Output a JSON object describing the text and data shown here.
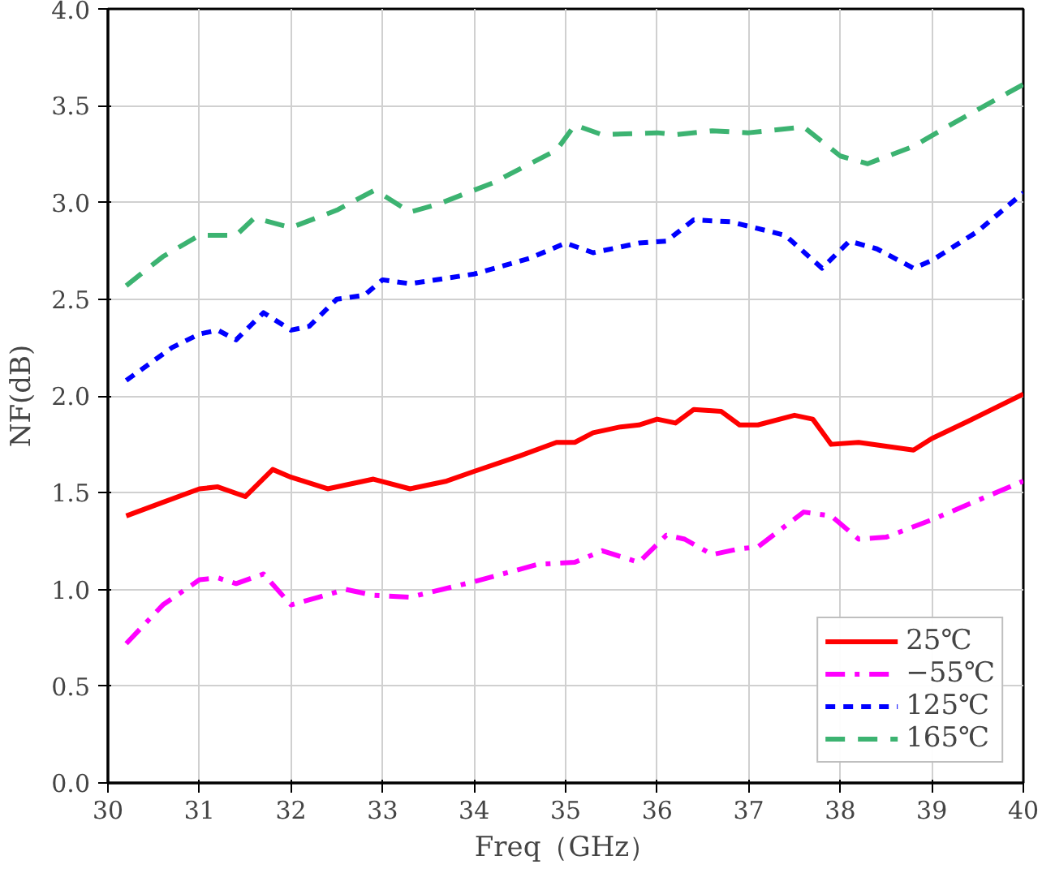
{
  "chart_data": {
    "type": "line",
    "xlabel": "Freq（GHz）",
    "ylabel": "NF(dB)",
    "xlim": [
      30,
      40
    ],
    "ylim": [
      0,
      4.0
    ],
    "xticks": [
      30,
      31,
      32,
      33,
      34,
      35,
      36,
      37,
      38,
      39,
      40
    ],
    "yticks": [
      {
        "value": 0,
        "label": "0.0"
      },
      0.5,
      {
        "value": 1,
        "label": "1.0"
      },
      1.5,
      {
        "value": 2,
        "label": "2.0"
      },
      2.5,
      {
        "value": 3,
        "label": "3.0"
      },
      3.5,
      {
        "value": 4,
        "label": "4.0"
      }
    ],
    "grid": true,
    "legend": "bottom right",
    "series": [
      {
        "name": "25℃",
        "color": "#ff0000",
        "line_style": "solid",
        "x": [
          30.2,
          30.6,
          31.0,
          31.2,
          31.5,
          31.8,
          32.0,
          32.4,
          32.9,
          33.3,
          33.7,
          34.0,
          34.5,
          34.9,
          35.1,
          35.3,
          35.6,
          35.8,
          36.0,
          36.2,
          36.4,
          36.7,
          36.9,
          37.1,
          37.5,
          37.7,
          37.9,
          38.2,
          38.8,
          39.0,
          39.4,
          40.0
        ],
        "values": [
          1.38,
          1.45,
          1.52,
          1.53,
          1.48,
          1.62,
          1.58,
          1.52,
          1.57,
          1.52,
          1.56,
          1.61,
          1.69,
          1.76,
          1.76,
          1.81,
          1.84,
          1.85,
          1.88,
          1.86,
          1.93,
          1.92,
          1.85,
          1.85,
          1.9,
          1.88,
          1.75,
          1.76,
          1.72,
          1.78,
          1.87,
          2.01
        ]
      },
      {
        "name": "−55℃",
        "color": "#ff00ff",
        "line_style": "dashdot",
        "x": [
          30.2,
          30.6,
          31.0,
          31.2,
          31.4,
          31.7,
          32.0,
          32.3,
          32.6,
          32.9,
          33.3,
          34.0,
          34.7,
          35.1,
          35.4,
          35.8,
          36.1,
          36.3,
          36.6,
          36.9,
          37.1,
          37.6,
          37.9,
          38.2,
          38.5,
          39.0,
          40.0
        ],
        "values": [
          0.72,
          0.92,
          1.05,
          1.06,
          1.03,
          1.08,
          0.92,
          0.96,
          1.0,
          0.97,
          0.96,
          1.04,
          1.13,
          1.14,
          1.2,
          1.14,
          1.28,
          1.26,
          1.18,
          1.21,
          1.22,
          1.4,
          1.38,
          1.26,
          1.27,
          1.36,
          1.56
        ]
      },
      {
        "name": "125℃",
        "color": "#0000ff",
        "line_style": "dotted",
        "x": [
          30.2,
          30.7,
          31.0,
          31.2,
          31.4,
          31.7,
          32.0,
          32.2,
          32.5,
          32.8,
          33.0,
          33.3,
          34.0,
          34.6,
          35.0,
          35.3,
          35.8,
          36.1,
          36.4,
          36.8,
          37.4,
          37.8,
          38.1,
          38.4,
          38.8,
          39.0,
          39.5,
          40.0
        ],
        "values": [
          2.08,
          2.25,
          2.32,
          2.34,
          2.29,
          2.43,
          2.34,
          2.36,
          2.5,
          2.52,
          2.6,
          2.58,
          2.63,
          2.71,
          2.79,
          2.74,
          2.79,
          2.8,
          2.91,
          2.9,
          2.83,
          2.66,
          2.8,
          2.76,
          2.66,
          2.7,
          2.85,
          3.05
        ]
      },
      {
        "name": "165℃",
        "color": "#3cb371",
        "line_style": "dashed",
        "x": [
          30.2,
          30.6,
          31.0,
          31.4,
          31.6,
          32.0,
          32.5,
          32.9,
          33.0,
          33.3,
          33.6,
          34.2,
          34.9,
          35.1,
          35.4,
          36.0,
          36.2,
          36.6,
          37.0,
          37.6,
          38.0,
          38.3,
          38.8,
          39.2,
          40.0
        ],
        "values": [
          2.57,
          2.72,
          2.83,
          2.83,
          2.92,
          2.87,
          2.96,
          3.06,
          3.04,
          2.95,
          2.99,
          3.1,
          3.27,
          3.4,
          3.35,
          3.36,
          3.35,
          3.37,
          3.36,
          3.39,
          3.24,
          3.2,
          3.29,
          3.4,
          3.61
        ]
      }
    ]
  }
}
